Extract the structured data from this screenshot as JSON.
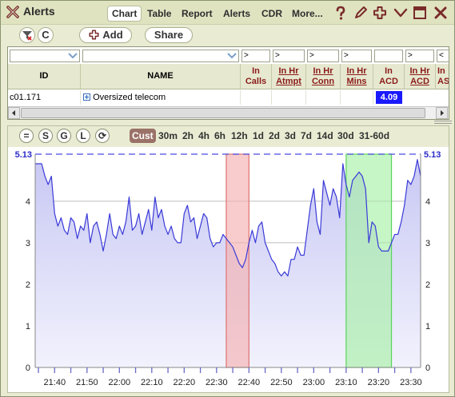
{
  "window": {
    "title": "Alerts",
    "tabs": [
      {
        "label": "Chart",
        "active": true
      },
      {
        "label": "Table",
        "active": false
      },
      {
        "label": "Report",
        "active": false
      },
      {
        "label": "Alerts",
        "active": false
      },
      {
        "label": "CDR",
        "active": false
      },
      {
        "label": "More...",
        "active": false
      }
    ],
    "icons": [
      "help-icon",
      "edit-icon",
      "add-icon",
      "collapse-icon",
      "maximize-icon",
      "close-icon"
    ]
  },
  "toolbar": {
    "clear_filter_label": "C",
    "add_label": "Add",
    "share_label": "Share"
  },
  "grid": {
    "filters": {
      "id": "",
      "name": "",
      "in_calls": ">",
      "in_hr_atmpt": ">",
      "in_hr_conn": ">",
      "in_hr_mins": ">",
      "in_acd": "",
      "in_hr_acd": ">",
      "in_as": "<"
    },
    "headers": {
      "id": "ID",
      "name": "NAME",
      "in_calls": "In\nCalls",
      "in_hr_atmpt": "In Hr\nAtmpt",
      "in_hr_conn": "In Hr\nConn",
      "in_hr_mins": "In Hr\nMins",
      "in_acd": "In\nACD",
      "in_hr_acd": "In Hr\nACD",
      "in_as": "In\nAS"
    },
    "rows": [
      {
        "id": "c01.171",
        "name": "Oversized telecom",
        "in_acd": "4.09"
      }
    ]
  },
  "chart_toolbar": {
    "buttons": [
      "=",
      "S",
      "G",
      "L",
      "⟳"
    ],
    "ranges": [
      {
        "label": "Cust",
        "active": true
      },
      {
        "label": "30m",
        "active": false
      },
      {
        "label": "2h",
        "active": false
      },
      {
        "label": "4h",
        "active": false
      },
      {
        "label": "6h",
        "active": false
      },
      {
        "label": "12h",
        "active": false
      },
      {
        "label": "1d",
        "active": false
      },
      {
        "label": "2d",
        "active": false
      },
      {
        "label": "3d",
        "active": false
      },
      {
        "label": "7d",
        "active": false
      },
      {
        "label": "14d",
        "active": false
      },
      {
        "label": "30d",
        "active": false
      },
      {
        "label": "31-60d",
        "active": false
      }
    ]
  },
  "chart_data": {
    "type": "area",
    "title": "",
    "xlabel": "",
    "ylabel": "",
    "xlim": [
      "21:34",
      "21:59 +1h"
    ],
    "x_ticks": [
      "21:40",
      "21:50",
      "22:00",
      "22:10",
      "22:20",
      "22:30",
      "22:40",
      "22:50",
      "23:00",
      "23:10",
      "23:20",
      "23:30"
    ],
    "y_ticks": [
      0,
      1,
      2,
      3,
      4
    ],
    "ylim": [
      0,
      5.13
    ],
    "max_line": {
      "value": 5.13,
      "label": "5.13"
    },
    "grid": true,
    "colors": {
      "line": "#3a3ad8",
      "fill_top": "#c8c8f4",
      "fill_bottom": "#f2f2fd",
      "max_line": "#4a4ae0",
      "red_band": "#f4b0b0",
      "green_band": "#a8f0a8"
    },
    "bands": [
      {
        "from": "22:33",
        "to": "22:40",
        "color": "red"
      },
      {
        "from": "23:10",
        "to": "23:24",
        "color": "green"
      }
    ],
    "series": [
      {
        "values_minutes_from": "21:34",
        "x": [
          0,
          1,
          2,
          3,
          4,
          5,
          6,
          7,
          8,
          9,
          10,
          11,
          12,
          13,
          14,
          15,
          16,
          17,
          18,
          19,
          20,
          21,
          22,
          23,
          24,
          25,
          26,
          27,
          28,
          29,
          30,
          31,
          32,
          33,
          34,
          35,
          36,
          37,
          38,
          39,
          40,
          41,
          42,
          43,
          44,
          45,
          46,
          47,
          48,
          49,
          50,
          51,
          52,
          53,
          54,
          55,
          56,
          57,
          58,
          59,
          60,
          61,
          62,
          63,
          64,
          65,
          66,
          67,
          68,
          69,
          70,
          71,
          72,
          73,
          74,
          75,
          76,
          77,
          78,
          79,
          80,
          81,
          82,
          83,
          84,
          85,
          86,
          87,
          88,
          89,
          90,
          91,
          92,
          93,
          94,
          95,
          96,
          97,
          98,
          99,
          100,
          101,
          102,
          103,
          104,
          105,
          106,
          107,
          108,
          109,
          110,
          111,
          112,
          113,
          114,
          115,
          116,
          117,
          118,
          119
        ],
        "y": [
          4.9,
          4.9,
          4.9,
          4.6,
          4.4,
          4.6,
          3.7,
          3.4,
          3.6,
          3.3,
          3.2,
          3.6,
          3.5,
          3.1,
          3.4,
          3.3,
          3.7,
          3.0,
          3.4,
          3.5,
          3.2,
          2.8,
          3.2,
          3.7,
          3.2,
          3.1,
          3.4,
          3.2,
          3.5,
          4.1,
          3.3,
          3.4,
          3.7,
          3.2,
          3.5,
          3.8,
          3.3,
          4.1,
          3.6,
          3.8,
          3.4,
          3.2,
          3.4,
          3.1,
          3.0,
          3.0,
          3.7,
          3.9,
          3.5,
          3.6,
          3.1,
          3.4,
          3.7,
          3.6,
          3.1,
          2.9,
          3.0,
          3.0,
          3.2,
          3.1,
          3.0,
          2.9,
          2.7,
          2.5,
          2.4,
          2.6,
          3.0,
          3.3,
          3.0,
          3.4,
          3.5,
          3.0,
          2.8,
          2.6,
          2.5,
          2.3,
          2.2,
          2.3,
          2.2,
          2.6,
          2.6,
          2.9,
          2.7,
          2.7,
          3.3,
          3.9,
          4.3,
          3.5,
          3.2,
          4.5,
          4.2,
          3.9,
          4.3,
          4.1,
          3.6,
          4.9,
          4.4,
          4.1,
          4.5,
          4.6,
          4.7,
          4.6,
          4.3,
          3.0,
          3.5,
          3.4,
          2.9,
          2.8,
          2.8,
          2.8,
          3.0,
          3.2,
          3.2,
          3.5,
          3.9,
          4.5,
          4.4,
          4.6,
          5.0,
          4.6
        ]
      }
    ]
  }
}
